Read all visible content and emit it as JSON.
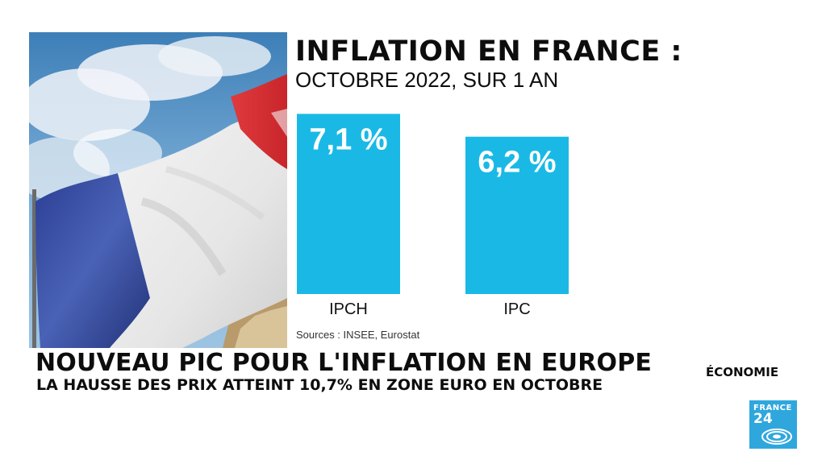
{
  "header": {
    "title": "INFLATION EN FRANCE :",
    "subtitle": "OCTOBRE 2022, SUR 1 AN"
  },
  "chart_data": {
    "type": "bar",
    "categories": [
      "IPCH",
      "IPC"
    ],
    "values": [
      7.1,
      6.2
    ],
    "value_labels": [
      "7,1 %",
      "6,2 %"
    ],
    "title": "INFLATION EN FRANCE :",
    "subtitle": "OCTOBRE 2022, SUR 1 AN",
    "xlabel": "",
    "ylabel": "",
    "grid": false,
    "bar_color": "#1ab9e5"
  },
  "sources": "Sources : INSEE, Eurostat",
  "banner": {
    "title": "NOUVEAU PIC POUR L'INFLATION EN EUROPE",
    "subtitle": "LA HAUSSE DES PRIX ATTEINT 10,7% EN ZONE EURO EN OCTOBRE",
    "section": "ÉCONOMIE"
  },
  "logo": {
    "line1": "FRANCE",
    "line2": "24",
    "color": "#2fa7dd"
  },
  "photo": {
    "icon": "french-flag-photo"
  }
}
